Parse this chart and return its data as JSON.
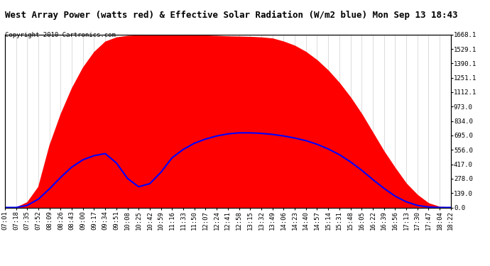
{
  "title": "West Array Power (watts red) & Effective Solar Radiation (W/m2 blue) Mon Sep 13 18:43",
  "copyright": "Copyright 2010 Cartronics.com",
  "background_color": "#ffffff",
  "plot_bg_color": "#ffffff",
  "grid_color": "#aaaaaa",
  "right_yticks": [
    0.0,
    139.0,
    278.0,
    417.0,
    556.0,
    695.0,
    834.0,
    973.0,
    1112.1,
    1251.1,
    1390.1,
    1529.1,
    1668.1
  ],
  "x_labels": [
    "07:01",
    "07:18",
    "07:35",
    "07:52",
    "08:09",
    "08:26",
    "08:43",
    "09:00",
    "09:17",
    "09:34",
    "09:51",
    "10:08",
    "10:25",
    "10:42",
    "10:59",
    "11:16",
    "11:33",
    "11:50",
    "12:07",
    "12:24",
    "12:41",
    "12:58",
    "13:15",
    "13:32",
    "13:49",
    "14:06",
    "14:23",
    "14:40",
    "14:57",
    "15:14",
    "15:31",
    "15:48",
    "16:05",
    "16:22",
    "16:39",
    "16:56",
    "17:13",
    "17:30",
    "17:47",
    "18:04",
    "18:22"
  ],
  "n_points": 41,
  "red_color": "#ff0000",
  "blue_color": "#0000ff",
  "title_fontsize": 9,
  "tick_fontsize": 6.5,
  "copyright_fontsize": 6.5,
  "red_vals": [
    0,
    0,
    50,
    200,
    600,
    900,
    1150,
    1350,
    1500,
    1600,
    1640,
    1655,
    1660,
    1665,
    1665,
    1665,
    1663,
    1660,
    1658,
    1655,
    1650,
    1648,
    1645,
    1640,
    1630,
    1600,
    1560,
    1500,
    1420,
    1320,
    1200,
    1060,
    900,
    720,
    540,
    380,
    230,
    120,
    40,
    5,
    0
  ],
  "blue_vals": [
    0,
    0,
    20,
    80,
    180,
    290,
    390,
    460,
    500,
    520,
    430,
    280,
    200,
    230,
    340,
    480,
    560,
    620,
    660,
    690,
    710,
    720,
    720,
    715,
    705,
    690,
    670,
    645,
    610,
    565,
    510,
    440,
    360,
    270,
    185,
    110,
    55,
    20,
    5,
    0,
    0
  ]
}
